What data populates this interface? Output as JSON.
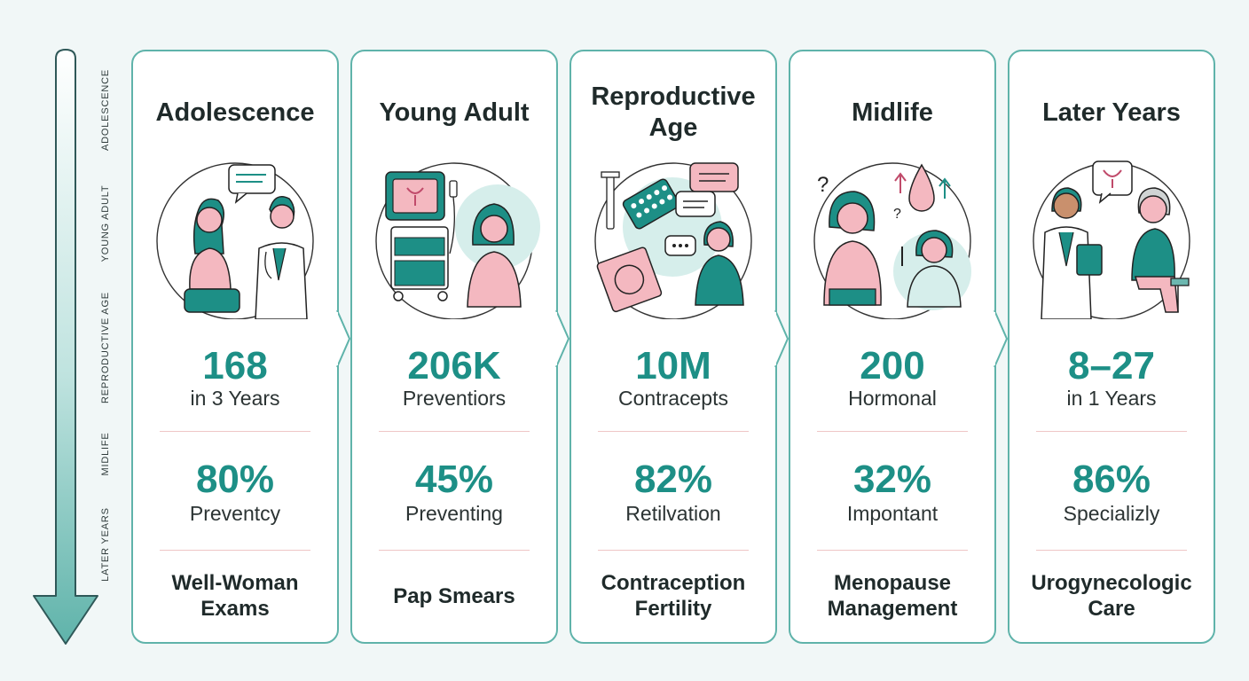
{
  "timeline": {
    "labels": [
      "ADOLESCENCE",
      "YOUNG ADULT",
      "REPRODUCTIVE AGE",
      "MIDLIFE",
      "LATER YEARS"
    ]
  },
  "stages": [
    {
      "title": "Adolescence",
      "stat1_value": "168",
      "stat1_label": "in 3 Years",
      "stat2_value": "80%",
      "stat2_label": "Preventcy",
      "care": "Well-Woman Exams",
      "illustration": "patient-doctor-consultation-icon"
    },
    {
      "title": "Young Adult",
      "stat1_value": "206K",
      "stat1_label": "Preventiors",
      "stat2_value": "45%",
      "stat2_label": "Preventing",
      "care": "Pap Smears",
      "illustration": "ultrasound-machine-icon"
    },
    {
      "title": "Reproductive Age",
      "stat1_value": "10M",
      "stat1_label": "Contracepts",
      "stat2_value": "82%",
      "stat2_label": "Retilvation",
      "care": "Contraception Fertility",
      "illustration": "contraception-icon"
    },
    {
      "title": "Midlife",
      "stat1_value": "200",
      "stat1_label": "Hormonal",
      "stat2_value": "32%",
      "stat2_label": "Impontant",
      "care": "Menopause Management",
      "illustration": "menopause-consultation-icon"
    },
    {
      "title": "Later Years",
      "stat1_value": "8–27",
      "stat1_label": "in 1 Years",
      "stat2_value": "86%",
      "stat2_label": "Specializly",
      "care": "Urogynecologic Care",
      "illustration": "urogynecology-consultation-icon"
    }
  ],
  "colors": {
    "teal": "#1d8f86",
    "border": "#5fb3aa",
    "pink": "#f4b8c0",
    "divider": "#efc6c6"
  }
}
